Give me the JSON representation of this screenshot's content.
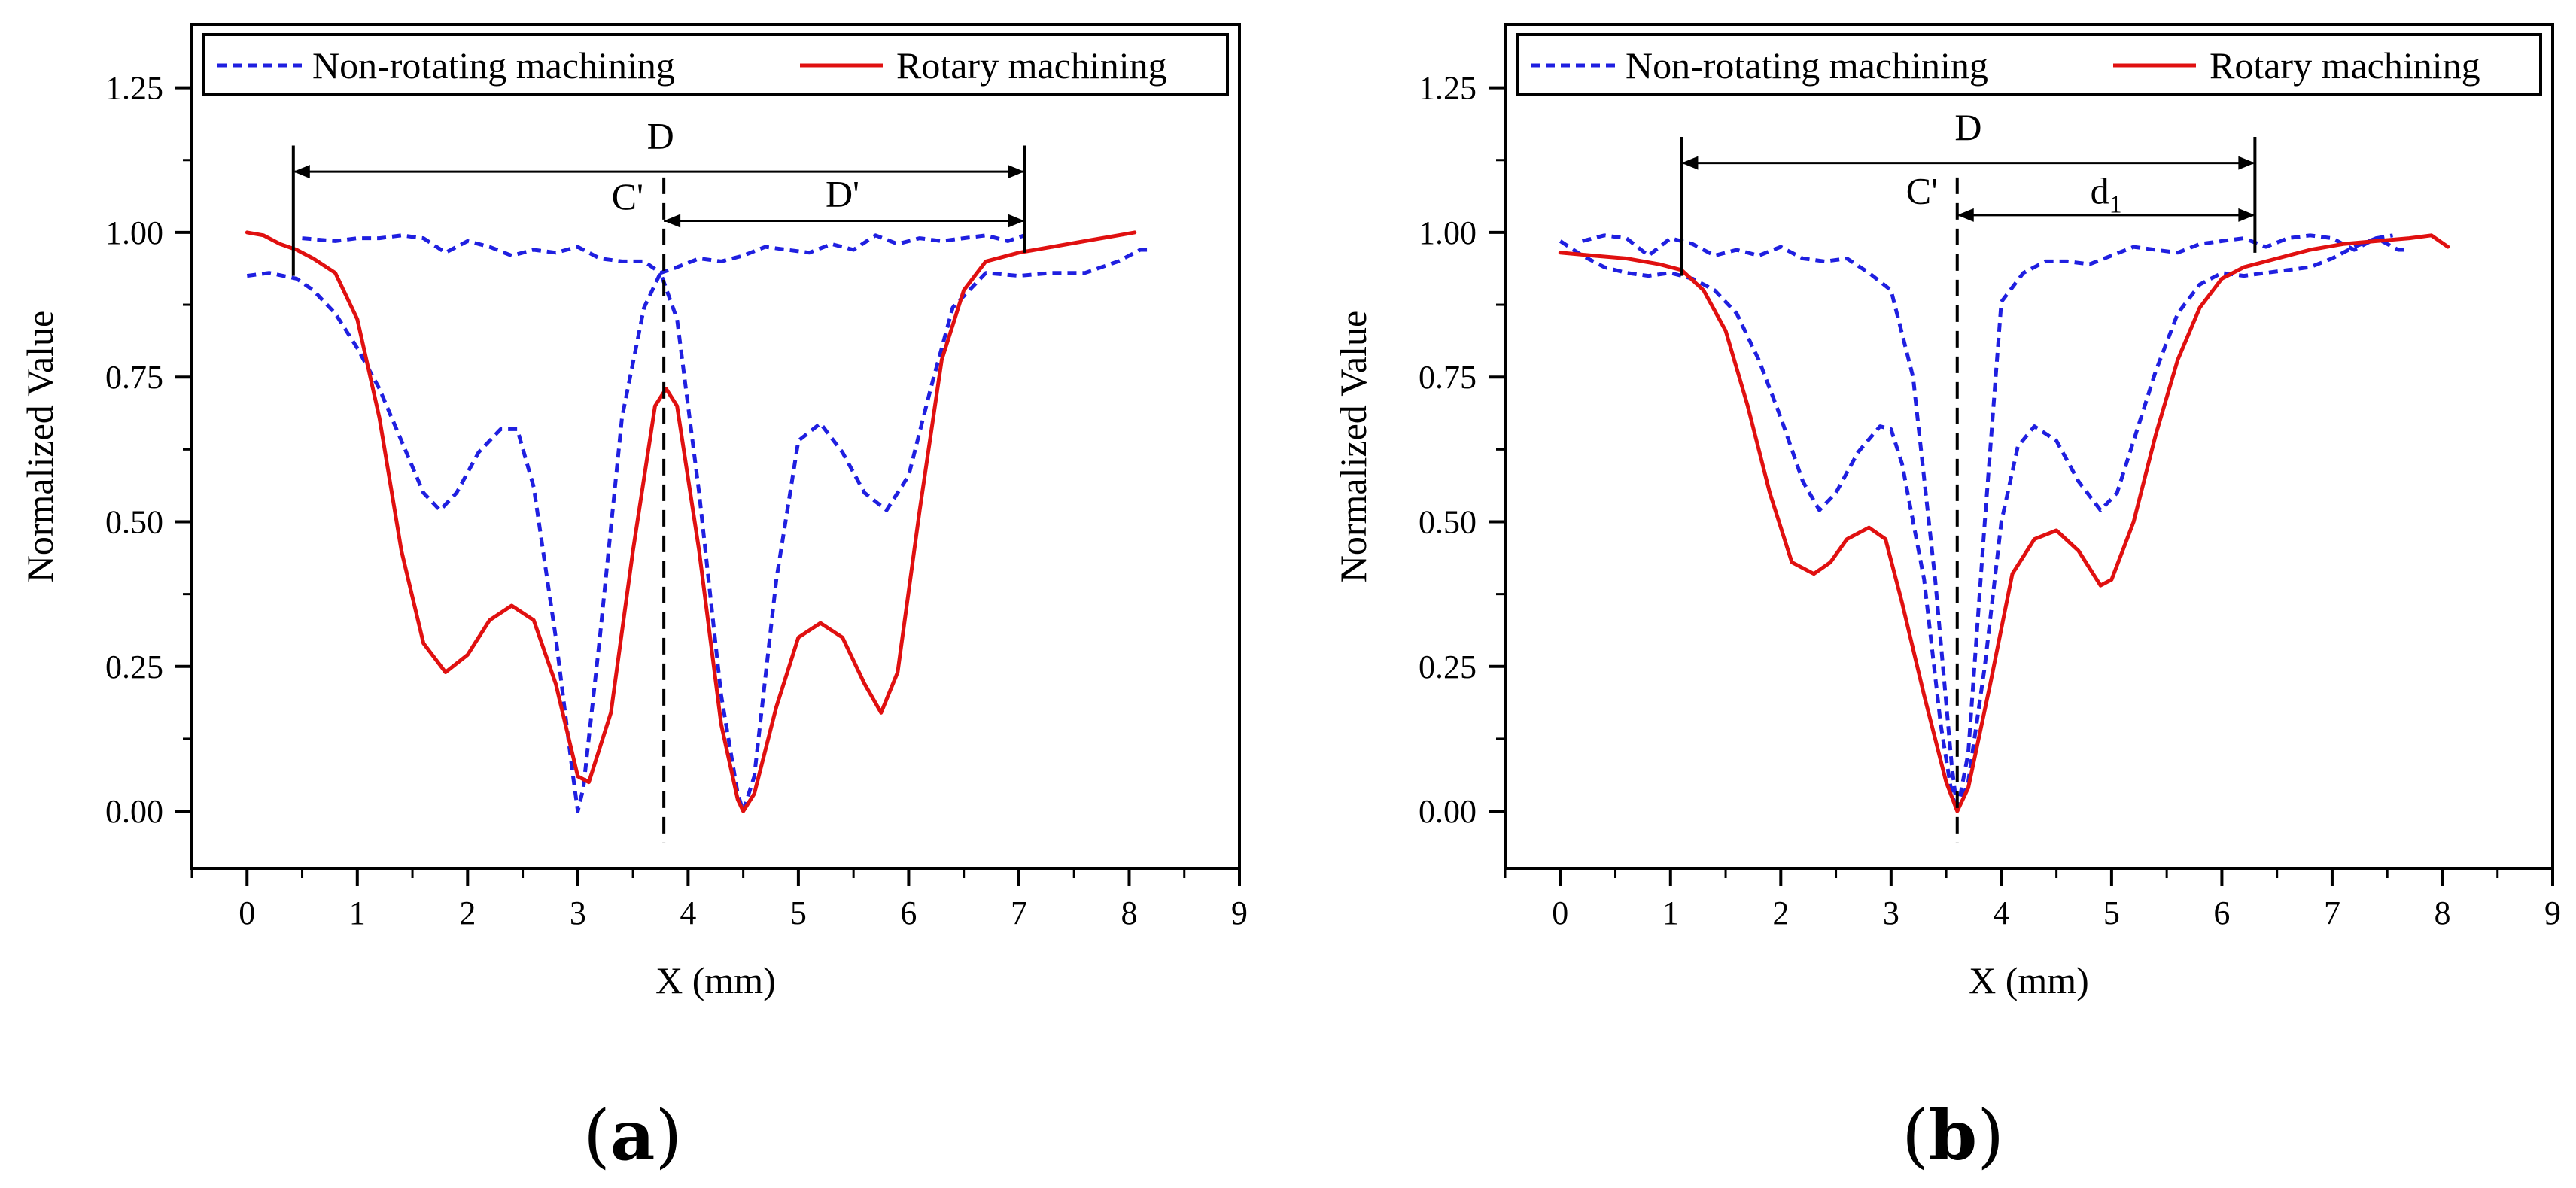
{
  "colors": {
    "non_rotating": "#1f1fe0",
    "rotary": "#e01010",
    "axis": "#000000"
  },
  "chart_data": [
    {
      "type": "line",
      "panel_label": "a",
      "xlabel": "X (mm)",
      "ylabel": "Normalized Value",
      "xlim": [
        -0.5,
        9
      ],
      "ylim": [
        -0.1,
        1.36
      ],
      "xticks": [
        "0",
        "1",
        "2",
        "3",
        "4",
        "5",
        "6",
        "7",
        "8",
        "9"
      ],
      "yticks": [
        "0.00",
        "0.25",
        "0.50",
        "0.75",
        "1.00",
        "1.25"
      ],
      "grid": false,
      "legend_position": "top",
      "series": [
        {
          "name": "Non-rotating machining",
          "style": "dashed",
          "color_key": "non_rotating",
          "x": [
            0,
            0.2,
            0.45,
            0.6,
            0.8,
            1.0,
            1.2,
            1.4,
            1.6,
            1.75,
            1.9,
            2.1,
            2.3,
            2.45,
            2.6,
            2.8,
            2.95,
            3.0,
            3.05,
            3.2,
            3.4,
            3.6,
            3.75,
            3.9,
            4.1,
            4.3,
            4.45,
            4.5,
            4.6,
            4.8,
            5.0,
            5.2,
            5.4,
            5.6,
            5.8,
            6.0,
            6.2,
            6.4,
            6.7,
            7.0,
            7.3,
            7.6,
            7.9,
            8.1,
            8.2
          ],
          "y": [
            0.925,
            0.93,
            0.92,
            0.9,
            0.86,
            0.8,
            0.73,
            0.64,
            0.55,
            0.52,
            0.55,
            0.62,
            0.66,
            0.66,
            0.56,
            0.3,
            0.07,
            0.0,
            0.04,
            0.3,
            0.68,
            0.87,
            0.93,
            0.85,
            0.55,
            0.2,
            0.03,
            0.0,
            0.06,
            0.4,
            0.64,
            0.67,
            0.62,
            0.55,
            0.52,
            0.58,
            0.73,
            0.87,
            0.93,
            0.925,
            0.93,
            0.93,
            0.95,
            0.97,
            0.97
          ]
        },
        {
          "name": "Non-rotating machining",
          "style": "dashed",
          "color_key": "non_rotating",
          "x": [
            0.5,
            0.8,
            1.0,
            1.2,
            1.4,
            1.6,
            1.8,
            2.0,
            2.2,
            2.4,
            2.6,
            2.8,
            3.0,
            3.2,
            3.4,
            3.6,
            3.75,
            3.9,
            4.1,
            4.3,
            4.5,
            4.7,
            4.9,
            5.1,
            5.3,
            5.5,
            5.7,
            5.9,
            6.1,
            6.3,
            6.5,
            6.7,
            6.9,
            7.05
          ],
          "y": [
            0.99,
            0.985,
            0.99,
            0.99,
            0.995,
            0.99,
            0.965,
            0.985,
            0.975,
            0.96,
            0.97,
            0.965,
            0.975,
            0.955,
            0.95,
            0.95,
            0.93,
            0.94,
            0.955,
            0.95,
            0.96,
            0.975,
            0.97,
            0.965,
            0.98,
            0.97,
            0.995,
            0.98,
            0.99,
            0.985,
            0.99,
            0.995,
            0.985,
            0.995
          ]
        },
        {
          "name": "Rotary machining",
          "style": "solid",
          "color_key": "rotary",
          "x": [
            0,
            0.15,
            0.3,
            0.45,
            0.6,
            0.8,
            1.0,
            1.2,
            1.4,
            1.6,
            1.8,
            2.0,
            2.2,
            2.4,
            2.6,
            2.8,
            3.0,
            3.1,
            3.3,
            3.5,
            3.7,
            3.8,
            3.9,
            4.1,
            4.3,
            4.45,
            4.5,
            4.6,
            4.8,
            5.0,
            5.2,
            5.4,
            5.6,
            5.75,
            5.9,
            6.1,
            6.3,
            6.5,
            6.7,
            7.0,
            7.3,
            7.6,
            7.9,
            8.05
          ],
          "y": [
            1.0,
            0.995,
            0.98,
            0.97,
            0.955,
            0.93,
            0.85,
            0.68,
            0.45,
            0.29,
            0.24,
            0.27,
            0.33,
            0.355,
            0.33,
            0.22,
            0.06,
            0.05,
            0.17,
            0.45,
            0.7,
            0.73,
            0.7,
            0.45,
            0.15,
            0.02,
            0.0,
            0.03,
            0.18,
            0.3,
            0.325,
            0.3,
            0.22,
            0.17,
            0.24,
            0.52,
            0.78,
            0.9,
            0.95,
            0.965,
            0.975,
            0.985,
            0.995,
            1.0
          ]
        }
      ],
      "annotations": [
        {
          "text": "D",
          "x": 3.75,
          "y": 1.145
        },
        {
          "text": "C'",
          "x": 3.45,
          "y": 1.04
        },
        {
          "text": "D'",
          "x": 5.4,
          "y": 1.045
        }
      ],
      "dimension_lines": {
        "D": [
          0.42,
          7.05
        ],
        "D_prime": [
          3.78,
          7.05
        ],
        "center": 3.78,
        "D_y": 1.105,
        "D_prime_y": 1.02
      }
    },
    {
      "type": "line",
      "panel_label": "b",
      "xlabel": "X (mm)",
      "ylabel": "Normalized Value",
      "xlim": [
        -0.5,
        9
      ],
      "ylim": [
        -0.1,
        1.36
      ],
      "xticks": [
        "0",
        "1",
        "2",
        "3",
        "4",
        "5",
        "6",
        "7",
        "8",
        "9"
      ],
      "yticks": [
        "0.00",
        "0.25",
        "0.50",
        "0.75",
        "1.00",
        "1.25"
      ],
      "grid": false,
      "legend_position": "top",
      "series": [
        {
          "name": "Non-rotating machining",
          "style": "dashed",
          "color_key": "non_rotating",
          "x": [
            0,
            0.2,
            0.4,
            0.6,
            0.8,
            1.0,
            1.2,
            1.4,
            1.6,
            1.8,
            2.0,
            2.2,
            2.35,
            2.5,
            2.7,
            2.9,
            3.0,
            3.1,
            3.3,
            3.45,
            3.55,
            3.6
          ],
          "y": [
            0.985,
            0.96,
            0.94,
            0.93,
            0.925,
            0.93,
            0.92,
            0.9,
            0.86,
            0.78,
            0.68,
            0.57,
            0.52,
            0.55,
            0.62,
            0.665,
            0.66,
            0.6,
            0.4,
            0.15,
            0.03,
            0.0
          ]
        },
        {
          "name": "Non-rotating machining",
          "style": "dashed",
          "color_key": "non_rotating",
          "x": [
            0.2,
            0.4,
            0.6,
            0.8,
            1.0,
            1.2,
            1.4,
            1.6,
            1.8,
            2.0,
            2.2,
            2.4,
            2.6,
            2.8,
            3.0,
            3.2,
            3.4,
            3.55,
            3.6
          ],
          "y": [
            0.985,
            0.995,
            0.99,
            0.96,
            0.99,
            0.98,
            0.96,
            0.97,
            0.96,
            0.975,
            0.955,
            0.95,
            0.955,
            0.93,
            0.9,
            0.75,
            0.4,
            0.08,
            0.0
          ]
        },
        {
          "name": "Non-rotating machining",
          "style": "dashed",
          "color_key": "non_rotating",
          "x": [
            3.6,
            3.7,
            3.85,
            4.0,
            4.15,
            4.3,
            4.5,
            4.7,
            4.9,
            5.05,
            5.2,
            5.4,
            5.6,
            5.8,
            6.0,
            6.2,
            6.4,
            6.6,
            6.8,
            7.0,
            7.2,
            7.4,
            7.6,
            7.65
          ],
          "y": [
            0.0,
            0.05,
            0.25,
            0.5,
            0.63,
            0.665,
            0.64,
            0.57,
            0.52,
            0.55,
            0.64,
            0.76,
            0.86,
            0.91,
            0.93,
            0.925,
            0.93,
            0.935,
            0.94,
            0.955,
            0.975,
            0.99,
            0.97,
            0.97
          ]
        },
        {
          "name": "Non-rotating machining",
          "style": "dashed",
          "color_key": "non_rotating",
          "x": [
            3.6,
            3.7,
            3.85,
            4.0,
            4.2,
            4.4,
            4.6,
            4.8,
            5.0,
            5.2,
            5.4,
            5.6,
            5.8,
            6.0,
            6.2,
            6.4,
            6.6,
            6.8,
            7.0,
            7.2,
            7.4,
            7.55
          ],
          "y": [
            0.0,
            0.1,
            0.5,
            0.88,
            0.93,
            0.95,
            0.95,
            0.945,
            0.96,
            0.975,
            0.97,
            0.965,
            0.98,
            0.985,
            0.99,
            0.975,
            0.99,
            0.995,
            0.99,
            0.97,
            0.99,
            0.995
          ]
        },
        {
          "name": "Rotary machining",
          "style": "solid",
          "color_key": "rotary",
          "x": [
            0,
            0.3,
            0.6,
            0.9,
            1.1,
            1.3,
            1.5,
            1.7,
            1.9,
            2.1,
            2.3,
            2.45,
            2.6,
            2.8,
            2.95,
            3.1,
            3.3,
            3.5,
            3.6,
            3.7,
            3.9,
            4.1,
            4.3,
            4.5,
            4.7,
            4.9,
            5.0,
            5.2,
            5.4,
            5.6,
            5.8,
            6.0,
            6.2,
            6.5,
            6.8,
            7.1,
            7.4,
            7.7,
            7.9,
            8.05
          ],
          "y": [
            0.965,
            0.96,
            0.955,
            0.945,
            0.935,
            0.9,
            0.83,
            0.7,
            0.55,
            0.43,
            0.41,
            0.43,
            0.47,
            0.49,
            0.47,
            0.36,
            0.2,
            0.05,
            0.0,
            0.04,
            0.22,
            0.41,
            0.47,
            0.485,
            0.45,
            0.39,
            0.4,
            0.5,
            0.65,
            0.78,
            0.87,
            0.92,
            0.94,
            0.955,
            0.97,
            0.98,
            0.985,
            0.99,
            0.995,
            0.975
          ]
        }
      ],
      "annotations": [
        {
          "text": "D",
          "x": 3.7,
          "y": 1.16
        },
        {
          "text": "C'",
          "x": 3.28,
          "y": 1.05
        },
        {
          "text": "d",
          "sub": "1",
          "x": 4.95,
          "y": 1.05
        }
      ],
      "dimension_lines": {
        "D": [
          1.1,
          6.3
        ],
        "D_prime": [
          3.6,
          6.3
        ],
        "center": 3.6,
        "D_y": 1.12,
        "D_prime_y": 1.03
      }
    }
  ]
}
